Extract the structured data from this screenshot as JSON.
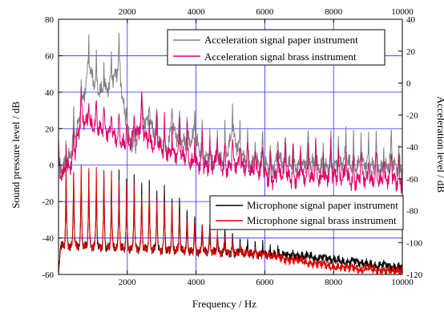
{
  "chart_data": {
    "type": "line",
    "title": "",
    "xlabel": "Frequency / Hz",
    "ylabel_left": "Sound pressure level / dB",
    "ylabel_right": "Acceleration level / dB",
    "xlim": [
      0,
      10000
    ],
    "ylim_left": [
      -60,
      80
    ],
    "ylim_right": [
      -120,
      40
    ],
    "x_ticks_bottom": [
      2000,
      4000,
      6000,
      8000,
      10000
    ],
    "x_ticks_top": [
      2000,
      4000,
      6000,
      8000,
      10000
    ],
    "y_ticks_left": [
      -60,
      -40,
      -20,
      0,
      20,
      40,
      60,
      80
    ],
    "y_ticks_right": [
      -120,
      -100,
      -80,
      -60,
      -40,
      -20,
      0,
      20,
      40
    ],
    "grid": true,
    "fundamental_hz": 220,
    "legend_top": {
      "placement": "top-right",
      "entries": [
        "Acceleration signal paper instrument",
        "Acceleration signal brass instrument"
      ]
    },
    "legend_bottom": {
      "placement": "center-right",
      "entries": [
        "Microphone signal  paper instrument",
        "Microphone signal  brass instrument"
      ]
    },
    "series": [
      {
        "name": "Acceleration signal paper instrument",
        "axis": "right",
        "color": "#808080",
        "points": [
          [
            0,
            -36
          ],
          [
            220,
            -35
          ],
          [
            440,
            -20
          ],
          [
            660,
            0
          ],
          [
            880,
            28
          ],
          [
            1100,
            14
          ],
          [
            1320,
            12
          ],
          [
            1540,
            18
          ],
          [
            1760,
            28
          ],
          [
            1980,
            -12
          ],
          [
            2200,
            -26
          ],
          [
            2420,
            -4
          ],
          [
            2640,
            -8
          ],
          [
            2860,
            -14
          ],
          [
            3080,
            -30
          ],
          [
            3300,
            -10
          ],
          [
            3520,
            -18
          ],
          [
            3740,
            -20
          ],
          [
            3960,
            -16
          ],
          [
            4180,
            -28
          ],
          [
            4400,
            -30
          ],
          [
            4620,
            -32
          ],
          [
            4840,
            -30
          ],
          [
            5060,
            -14
          ],
          [
            5280,
            -26
          ],
          [
            5500,
            -32
          ],
          [
            5720,
            -34
          ],
          [
            5940,
            -30
          ],
          [
            6160,
            -38
          ],
          [
            6380,
            -30
          ],
          [
            6600,
            -32
          ],
          [
            6820,
            -34
          ],
          [
            7040,
            -36
          ],
          [
            7260,
            -30
          ],
          [
            7480,
            -34
          ],
          [
            7700,
            -36
          ],
          [
            7920,
            -34
          ],
          [
            8140,
            -34
          ],
          [
            8360,
            -30
          ],
          [
            8580,
            -36
          ],
          [
            8800,
            -32
          ],
          [
            9020,
            -34
          ],
          [
            9240,
            -34
          ],
          [
            9460,
            -38
          ],
          [
            9680,
            -30
          ],
          [
            9900,
            -38
          ],
          [
            10000,
            -36
          ]
        ]
      },
      {
        "name": "Acceleration signal brass instrument",
        "axis": "right",
        "color": "#e0006a",
        "points": [
          [
            0,
            -40
          ],
          [
            220,
            -38
          ],
          [
            440,
            -30
          ],
          [
            660,
            -4
          ],
          [
            880,
            -8
          ],
          [
            1100,
            -10
          ],
          [
            1320,
            -12
          ],
          [
            1540,
            -14
          ],
          [
            1760,
            -18
          ],
          [
            1980,
            -22
          ],
          [
            2200,
            -16
          ],
          [
            2420,
            -8
          ],
          [
            2640,
            -22
          ],
          [
            2860,
            -20
          ],
          [
            3080,
            -24
          ],
          [
            3300,
            -28
          ],
          [
            3520,
            -26
          ],
          [
            3740,
            -30
          ],
          [
            3960,
            -34
          ],
          [
            4180,
            -32
          ],
          [
            4400,
            -36
          ],
          [
            4620,
            -30
          ],
          [
            4840,
            -38
          ],
          [
            5060,
            -32
          ],
          [
            5280,
            -34
          ],
          [
            5500,
            -36
          ],
          [
            5720,
            -38
          ],
          [
            5940,
            -36
          ],
          [
            6160,
            -44
          ],
          [
            6380,
            -40
          ],
          [
            6600,
            -38
          ],
          [
            6820,
            -44
          ],
          [
            7040,
            -40
          ],
          [
            7260,
            -42
          ],
          [
            7480,
            -40
          ],
          [
            7700,
            -44
          ],
          [
            7920,
            -38
          ],
          [
            8140,
            -42
          ],
          [
            8360,
            -40
          ],
          [
            8580,
            -46
          ],
          [
            8800,
            -40
          ],
          [
            9020,
            -44
          ],
          [
            9240,
            -42
          ],
          [
            9460,
            -44
          ],
          [
            9680,
            -40
          ],
          [
            9900,
            -46
          ],
          [
            10000,
            -44
          ]
        ]
      },
      {
        "name": "Microphone signal  paper instrument",
        "axis": "left",
        "color": "#000000",
        "points": [
          [
            0,
            -60
          ],
          [
            220,
            -2
          ],
          [
            440,
            -2
          ],
          [
            660,
            -6
          ],
          [
            880,
            -2
          ],
          [
            1100,
            -8
          ],
          [
            1320,
            -4
          ],
          [
            1540,
            -8
          ],
          [
            1760,
            -4
          ],
          [
            1980,
            -10
          ],
          [
            2200,
            -6
          ],
          [
            2420,
            -12
          ],
          [
            2640,
            -10
          ],
          [
            2860,
            -14
          ],
          [
            3080,
            -12
          ],
          [
            3300,
            -18
          ],
          [
            3520,
            -16
          ],
          [
            3740,
            -24
          ],
          [
            3960,
            -26
          ],
          [
            4180,
            -30
          ],
          [
            4400,
            -32
          ],
          [
            4620,
            -36
          ],
          [
            4840,
            -34
          ],
          [
            5060,
            -38
          ],
          [
            5280,
            -40
          ],
          [
            5500,
            -42
          ],
          [
            5720,
            -44
          ],
          [
            5940,
            -42
          ],
          [
            6160,
            -46
          ],
          [
            6380,
            -46
          ],
          [
            6600,
            -48
          ],
          [
            6820,
            -48
          ],
          [
            7040,
            -50
          ],
          [
            7260,
            -48
          ],
          [
            7480,
            -52
          ],
          [
            7700,
            -50
          ],
          [
            7920,
            -52
          ],
          [
            8140,
            -52
          ],
          [
            8360,
            -54
          ],
          [
            8580,
            -52
          ],
          [
            8800,
            -54
          ],
          [
            9020,
            -54
          ],
          [
            9240,
            -56
          ],
          [
            9460,
            -54
          ],
          [
            9680,
            -56
          ],
          [
            9900,
            -56
          ],
          [
            10000,
            -56
          ]
        ]
      },
      {
        "name": "Microphone signal  brass instrument",
        "axis": "left",
        "color": "#e00000",
        "points": [
          [
            0,
            -60
          ],
          [
            220,
            0
          ],
          [
            440,
            -4
          ],
          [
            660,
            -2
          ],
          [
            880,
            -4
          ],
          [
            1100,
            -2
          ],
          [
            1320,
            -6
          ],
          [
            1540,
            -4
          ],
          [
            1760,
            -8
          ],
          [
            1980,
            -10
          ],
          [
            2200,
            -8
          ],
          [
            2420,
            -14
          ],
          [
            2640,
            -12
          ],
          [
            2860,
            -16
          ],
          [
            3080,
            -18
          ],
          [
            3300,
            -20
          ],
          [
            3520,
            -24
          ],
          [
            3740,
            -30
          ],
          [
            3960,
            -32
          ],
          [
            4180,
            -34
          ],
          [
            4400,
            -36
          ],
          [
            4620,
            -38
          ],
          [
            4840,
            -40
          ],
          [
            5060,
            -42
          ],
          [
            5280,
            -44
          ],
          [
            5500,
            -46
          ],
          [
            5720,
            -46
          ],
          [
            5940,
            -48
          ],
          [
            6160,
            -50
          ],
          [
            6380,
            -50
          ],
          [
            6600,
            -52
          ],
          [
            6820,
            -52
          ],
          [
            7040,
            -52
          ],
          [
            7260,
            -54
          ],
          [
            7480,
            -54
          ],
          [
            7700,
            -54
          ],
          [
            7920,
            -56
          ],
          [
            8140,
            -56
          ],
          [
            8360,
            -56
          ],
          [
            8580,
            -56
          ],
          [
            8800,
            -58
          ],
          [
            9020,
            -56
          ],
          [
            9240,
            -58
          ],
          [
            9460,
            -58
          ],
          [
            9680,
            -58
          ],
          [
            9900,
            -58
          ],
          [
            10000,
            -58
          ]
        ]
      }
    ]
  }
}
